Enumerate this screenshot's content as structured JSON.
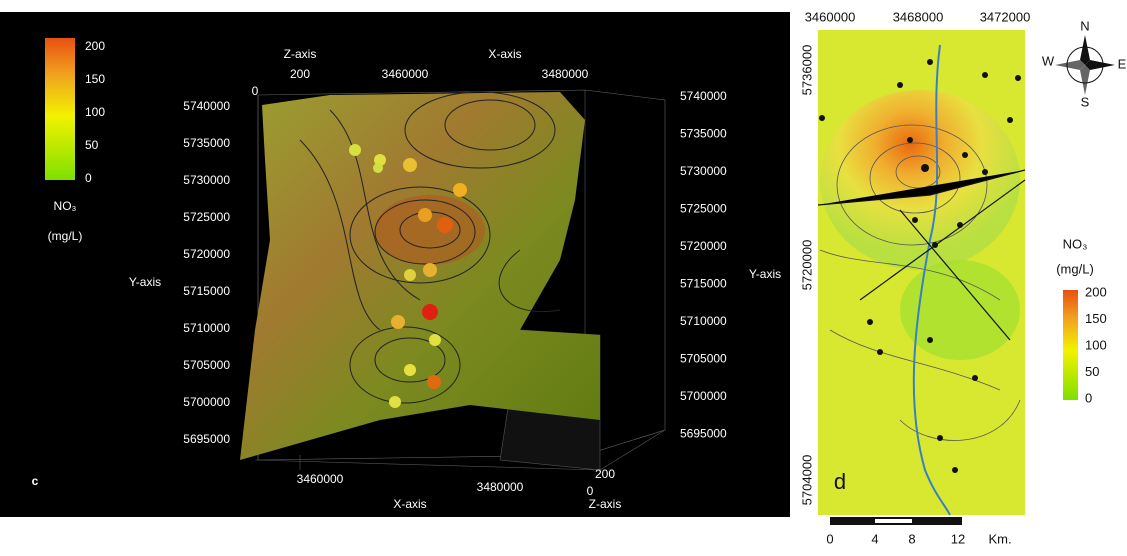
{
  "panel_c": {
    "label": "c",
    "legend": {
      "title": "NO₃",
      "unit": "(mg/L)",
      "ticks": [
        200,
        150,
        100,
        50,
        0
      ]
    },
    "top": {
      "z_axis": "Z-axis",
      "x_axis": "X-axis",
      "z_ticks": [
        200,
        0
      ],
      "x_ticks": [
        3460000,
        3480000
      ]
    },
    "y_axis_left": "Y-axis",
    "y_axis_right": "Y-axis",
    "y_ticks_left": [
      5740000,
      5735000,
      5730000,
      5725000,
      5720000,
      5715000,
      5710000,
      5705000,
      5700000,
      5695000
    ],
    "y_ticks_right": [
      5740000,
      5735000,
      5730000,
      5725000,
      5720000,
      5715000,
      5710000,
      5705000,
      5700000,
      5695000
    ],
    "bottom": {
      "x_ticks": [
        3460000,
        3480000
      ],
      "x_axis": "X-axis",
      "z_ticks": [
        200,
        0
      ],
      "z_axis": "Z-axis"
    }
  },
  "panel_d": {
    "label": "d",
    "x_ticks": [
      3460000,
      3468000,
      3472000
    ],
    "y_ticks": [
      5736000,
      5720000,
      5704000
    ],
    "compass": {
      "n": "N",
      "e": "E",
      "s": "S",
      "w": "W"
    },
    "legend": {
      "title": "NO₃",
      "unit": "(mg/L)",
      "ticks": [
        200,
        150,
        100,
        50,
        0
      ]
    },
    "scale": {
      "ticks": [
        0,
        4,
        8,
        12
      ],
      "unit": "Km."
    }
  }
}
